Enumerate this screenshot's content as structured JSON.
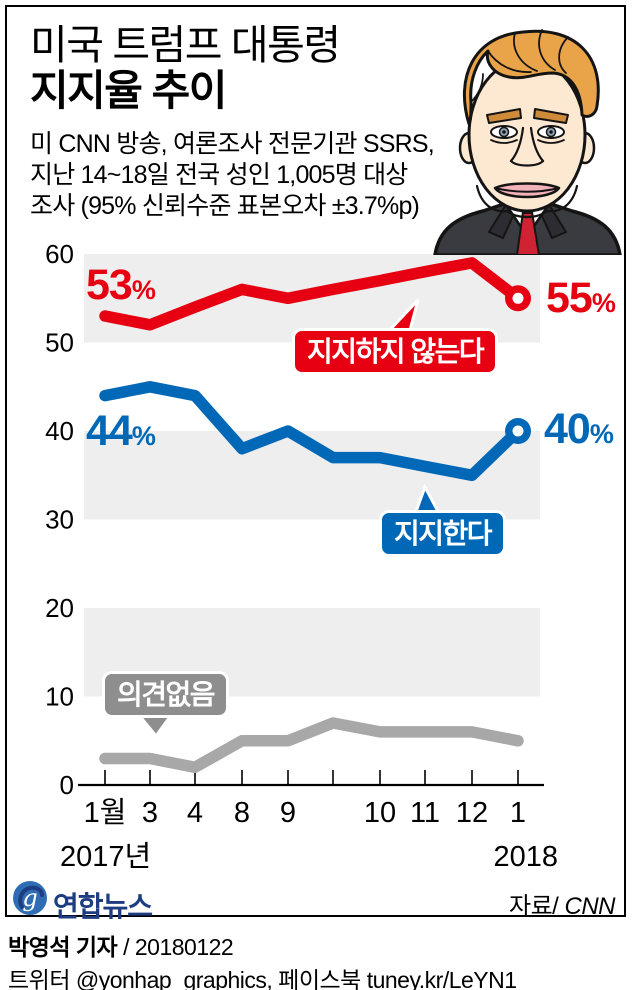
{
  "header": {
    "title_line1": "미국 트럼프 대통령",
    "title_line2": "지지율 추이",
    "subtitle_lines": [
      "미 CNN 방송, 여론조사 전문기관 SSRS,",
      "지난 14~18일 전국 성인 1,005명 대상",
      "조사 (95% 신뢰수준 표본오차 ±3.7%p)"
    ]
  },
  "chart_data": {
    "type": "line",
    "title": "미국 트럼프 대통령 지지율 추이",
    "x_tick_labels": [
      "1월",
      "3",
      "4",
      "8",
      "9",
      "",
      "10",
      "11",
      "12",
      "1"
    ],
    "x_year_left": "2017년",
    "x_year_right": "2018",
    "y_ticks": [
      60,
      50,
      40,
      30,
      20,
      10,
      0
    ],
    "ylim": [
      0,
      60
    ],
    "unit": "%",
    "grid": "banded",
    "legend_position": "inline-bubbles",
    "series": [
      {
        "name": "지지하지 않는다",
        "color": "#e60012",
        "values": [
          53,
          52,
          54,
          56,
          55,
          56,
          57,
          58,
          59,
          55
        ],
        "start_label": "53%",
        "end_label": "55%",
        "end_marker": true
      },
      {
        "name": "지지한다",
        "color": "#0068b7",
        "values": [
          44,
          45,
          44,
          38,
          40,
          37,
          37,
          36,
          35,
          40
        ],
        "start_label": "44%",
        "end_label": "40%",
        "end_marker": true
      },
      {
        "name": "의견없음",
        "color": "#a8a8a8",
        "values": [
          3,
          3,
          2,
          5,
          5,
          7,
          6,
          6,
          6,
          5
        ],
        "end_marker": false
      }
    ],
    "annotations": [
      {
        "text": "지지하지 않는다",
        "color": "#e60012"
      },
      {
        "text": "지지한다",
        "color": "#0068b7"
      },
      {
        "text": "의견없음",
        "color": "#8e8e8e"
      }
    ]
  },
  "point_labels": [
    {
      "id": "red-start",
      "num": "53",
      "pct": "%",
      "color": "#e60012"
    },
    {
      "id": "red-end",
      "num": "55",
      "pct": "%",
      "color": "#e60012"
    },
    {
      "id": "blue-start",
      "num": "44",
      "pct": "%",
      "color": "#0068b7"
    },
    {
      "id": "blue-end",
      "num": "40",
      "pct": "%",
      "color": "#0068b7"
    }
  ],
  "footer": {
    "logo_text": "연합뉴스",
    "source_prefix": "자료/",
    "source_value": " CNN",
    "byline_bold": "박영석 기자",
    "byline_rest": " / 20180122",
    "social": "트위터 @yonhap_graphics, 페이스북 tuney.kr/LeYN1"
  },
  "colors": {
    "disapprove_red": "#e60012",
    "approve_blue": "#0068b7",
    "no_opinion_gray_line": "#a8a8a8",
    "no_opinion_gray_bubble": "#8e8e8e",
    "band_gray": "#eeeeee",
    "logo_navy": "#1e3c82"
  }
}
